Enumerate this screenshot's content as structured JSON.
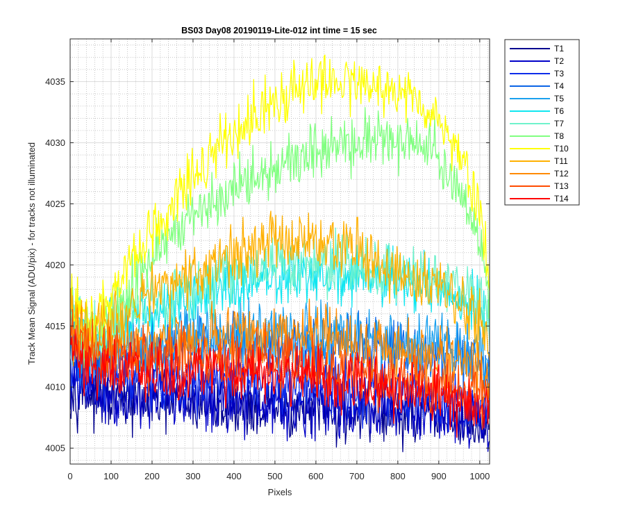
{
  "chart_data": {
    "type": "line",
    "title": "BS03 Day08 20190119-Lite-012 int time = 15 sec",
    "xlabel": "Pixels",
    "ylabel": "Track Mean Signal (ADU/pix) - for tracks not illuminated",
    "xlim": [
      0,
      1024
    ],
    "ylim": [
      4003.7,
      4038.5
    ],
    "xticks": [
      0,
      100,
      200,
      300,
      400,
      500,
      600,
      700,
      800,
      900,
      1000
    ],
    "yticks": [
      4005,
      4010,
      4015,
      4020,
      4025,
      4030,
      4035
    ],
    "grid": "major and minor",
    "legend_position": "outside-top-right",
    "series": [
      {
        "name": "T1",
        "color": "#00008f",
        "x": [
          0,
          50,
          100,
          200,
          300,
          400,
          500,
          600,
          700,
          800,
          900,
          950,
          1000,
          1024
        ],
        "y": [
          4010.0,
          4009.3,
          4008.9,
          4008.7,
          4008.6,
          4008.4,
          4008.2,
          4008.0,
          4007.8,
          4007.6,
          4007.4,
          4007.2,
          4006.6,
          4006.2
        ]
      },
      {
        "name": "T2",
        "color": "#0000c8",
        "x": [
          0,
          50,
          100,
          200,
          300,
          400,
          500,
          600,
          700,
          800,
          900,
          950,
          1000,
          1024
        ],
        "y": [
          4010.5,
          4009.8,
          4009.4,
          4009.2,
          4009.0,
          4008.9,
          4008.7,
          4008.5,
          4008.3,
          4008.1,
          4007.9,
          4007.6,
          4007.1,
          4006.9
        ]
      },
      {
        "name": "T3",
        "color": "#0d2cea",
        "x": [
          0,
          50,
          100,
          200,
          300,
          400,
          500,
          600,
          700,
          800,
          900,
          950,
          1000,
          1024
        ],
        "y": [
          4011.5,
          4010.8,
          4010.5,
          4010.5,
          4010.4,
          4010.3,
          4010.2,
          4010.0,
          4009.8,
          4009.6,
          4009.3,
          4009.0,
          4008.5,
          4008.2
        ]
      },
      {
        "name": "T4",
        "color": "#0a64e6",
        "x": [
          0,
          50,
          100,
          200,
          300,
          400,
          500,
          600,
          700,
          800,
          900,
          950,
          1000,
          1024
        ],
        "y": [
          4013.0,
          4012.0,
          4012.4,
          4013.0,
          4013.4,
          4013.6,
          4013.7,
          4013.6,
          4013.4,
          4013.1,
          4012.6,
          4012.2,
          4011.3,
          4010.5
        ]
      },
      {
        "name": "T5",
        "color": "#1aa0ee",
        "x": [
          0,
          50,
          100,
          200,
          300,
          400,
          500,
          600,
          700,
          800,
          900,
          950,
          1000,
          1024
        ],
        "y": [
          4013.5,
          4012.8,
          4013.0,
          4013.6,
          4014.0,
          4014.2,
          4014.3,
          4014.2,
          4014.0,
          4013.8,
          4013.4,
          4013.0,
          4012.1,
          4011.0
        ]
      },
      {
        "name": "T6",
        "color": "#10e6f0",
        "x": [
          0,
          50,
          100,
          200,
          300,
          400,
          500,
          600,
          700,
          800,
          900,
          950,
          1000,
          1024
        ],
        "y": [
          4016.0,
          4014.0,
          4014.6,
          4016.2,
          4017.4,
          4018.4,
          4019.0,
          4019.2,
          4019.0,
          4018.6,
          4018.0,
          4017.4,
          4016.0,
          4015.0
        ]
      },
      {
        "name": "T7",
        "color": "#6ef2cc",
        "x": [
          0,
          50,
          100,
          200,
          300,
          400,
          500,
          600,
          700,
          800,
          900,
          950,
          1000,
          1024
        ],
        "y": [
          4016.5,
          4014.6,
          4015.2,
          4016.8,
          4018.0,
          4019.2,
          4019.8,
          4020.0,
          4019.8,
          4019.4,
          4018.8,
          4018.2,
          4016.8,
          4015.6
        ]
      },
      {
        "name": "T8",
        "color": "#80ff80",
        "x": [
          0,
          50,
          100,
          150,
          200,
          250,
          300,
          350,
          400,
          450,
          500,
          550,
          600,
          650,
          700,
          750,
          800,
          850,
          900,
          950,
          1000,
          1024
        ],
        "y": [
          4016.5,
          4014.2,
          4015.6,
          4018.5,
          4020.5,
          4022.4,
          4023.8,
          4025.0,
          4026.2,
          4027.2,
          4028.2,
          4028.9,
          4029.4,
          4029.6,
          4030.1,
          4030.4,
          4030.3,
          4030.0,
          4028.6,
          4026.4,
          4022.0,
          4017.5
        ]
      },
      {
        "name": "T10",
        "color": "#ffff00",
        "x": [
          0,
          50,
          100,
          150,
          200,
          250,
          300,
          350,
          400,
          450,
          500,
          550,
          600,
          650,
          700,
          750,
          800,
          850,
          900,
          950,
          1000,
          1024
        ],
        "y": [
          4017.0,
          4015.2,
          4017.0,
          4020.5,
          4023.0,
          4025.2,
          4027.2,
          4029.2,
          4030.8,
          4032.2,
          4033.4,
          4034.4,
          4035.0,
          4035.2,
          4035.0,
          4034.6,
          4034.0,
          4033.4,
          4031.8,
          4029.0,
          4024.5,
          4019.5
        ]
      },
      {
        "name": "T11",
        "color": "#ffb000",
        "x": [
          0,
          50,
          100,
          150,
          200,
          250,
          300,
          350,
          400,
          450,
          500,
          550,
          600,
          650,
          700,
          750,
          800,
          850,
          900,
          950,
          1000,
          1024
        ],
        "y": [
          4016.0,
          4014.4,
          4015.0,
          4016.6,
          4017.6,
          4018.4,
          4019.4,
          4020.2,
          4020.9,
          4021.4,
          4021.9,
          4022.1,
          4021.9,
          4021.4,
          4020.9,
          4020.1,
          4019.3,
          4018.7,
          4017.9,
          4016.9,
          4015.0,
          4013.5
        ]
      },
      {
        "name": "T12",
        "color": "#ff8a00",
        "x": [
          0,
          50,
          100,
          200,
          300,
          400,
          500,
          600,
          700,
          800,
          900,
          950,
          1000,
          1024
        ],
        "y": [
          4014.5,
          4013.4,
          4013.2,
          4013.6,
          4014.0,
          4014.2,
          4014.2,
          4014.0,
          4013.6,
          4013.0,
          4012.4,
          4012.0,
          4011.1,
          4010.5
        ]
      },
      {
        "name": "T13",
        "color": "#ff4b00",
        "x": [
          0,
          50,
          100,
          200,
          300,
          400,
          500,
          600,
          700,
          800,
          900,
          950,
          1000,
          1024
        ],
        "y": [
          4014.0,
          4012.8,
          4012.3,
          4012.3,
          4012.3,
          4012.2,
          4012.1,
          4011.7,
          4011.3,
          4010.8,
          4010.3,
          4009.9,
          4009.2,
          4008.8
        ]
      },
      {
        "name": "T14",
        "color": "#ff0000",
        "x": [
          0,
          50,
          100,
          200,
          300,
          400,
          500,
          600,
          700,
          800,
          900,
          950,
          1000,
          1024
        ],
        "y": [
          4013.0,
          4011.8,
          4011.3,
          4011.3,
          4011.2,
          4011.2,
          4011.0,
          4010.6,
          4010.2,
          4009.7,
          4009.2,
          4008.8,
          4008.1,
          4007.8
        ]
      }
    ]
  }
}
